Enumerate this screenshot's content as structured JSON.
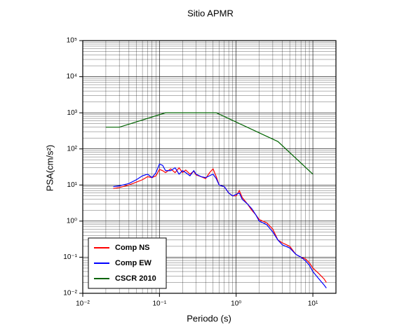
{
  "chart_data": {
    "type": "line",
    "title": "Sitio APMR",
    "x_label": "Periodo (s)",
    "y_label": "PSA(cm/s²)",
    "log_x": true,
    "log_y": true,
    "grid": true,
    "minor_grid": true,
    "legend": "lower left",
    "xlim": [
      0.01,
      20
    ],
    "ylim": [
      0.01,
      100000
    ],
    "xticks": [
      {
        "value": 0.01,
        "label": "10⁻²"
      },
      {
        "value": 0.1,
        "label": "10⁻¹"
      },
      {
        "value": 1,
        "label": "10⁰"
      },
      {
        "value": 10,
        "label": "10¹"
      }
    ],
    "yticks": [
      {
        "value": 0.01,
        "label": "10⁻²"
      },
      {
        "value": 0.1,
        "label": "10⁻¹"
      },
      {
        "value": 1,
        "label": "10⁰"
      },
      {
        "value": 10,
        "label": "10¹"
      },
      {
        "value": 100,
        "label": "10²"
      },
      {
        "value": 1000,
        "label": "10³"
      },
      {
        "value": 10000,
        "label": "10⁴"
      },
      {
        "value": 100000,
        "label": "10⁵"
      }
    ],
    "series": [
      {
        "name": "Comp NS",
        "color": "#ff0000",
        "x": [
          0.025,
          0.03,
          0.04,
          0.05,
          0.06,
          0.07,
          0.08,
          0.09,
          0.1,
          0.11,
          0.12,
          0.14,
          0.16,
          0.18,
          0.2,
          0.22,
          0.25,
          0.28,
          0.3,
          0.35,
          0.4,
          0.45,
          0.5,
          0.55,
          0.6,
          0.7,
          0.8,
          0.9,
          1.0,
          1.1,
          1.2,
          1.4,
          1.6,
          1.8,
          2,
          2.5,
          3,
          3.5,
          4,
          5,
          6,
          7,
          8,
          9,
          10,
          12,
          14,
          15
        ],
        "values": [
          8,
          8.5,
          10,
          12,
          14,
          17,
          16,
          18,
          27,
          25,
          22,
          28,
          22,
          30,
          22,
          26,
          20,
          24,
          19,
          17,
          15,
          22,
          28,
          17,
          10,
          9,
          6,
          5,
          5,
          7,
          4.5,
          3,
          2,
          1.5,
          1.1,
          0.9,
          0.6,
          0.3,
          0.25,
          0.2,
          0.12,
          0.1,
          0.09,
          0.07,
          0.05,
          0.035,
          0.025,
          0.02
        ]
      },
      {
        "name": "Comp EW",
        "color": "#0000ff",
        "x": [
          0.025,
          0.03,
          0.04,
          0.05,
          0.06,
          0.07,
          0.08,
          0.09,
          0.1,
          0.11,
          0.12,
          0.14,
          0.16,
          0.18,
          0.2,
          0.22,
          0.25,
          0.28,
          0.3,
          0.35,
          0.4,
          0.45,
          0.5,
          0.55,
          0.6,
          0.7,
          0.8,
          0.9,
          1.0,
          1.1,
          1.2,
          1.4,
          1.6,
          1.8,
          2,
          2.5,
          3,
          3.5,
          4,
          5,
          6,
          7,
          8,
          9,
          10,
          12,
          14,
          15
        ],
        "values": [
          9,
          9.5,
          11,
          14,
          18,
          20,
          16,
          22,
          38,
          35,
          25,
          25,
          30,
          20,
          25,
          22,
          18,
          25,
          20,
          17,
          16,
          18,
          20,
          15,
          10,
          9,
          6,
          5,
          5.5,
          6,
          4,
          3,
          2.2,
          1.5,
          1,
          0.8,
          0.5,
          0.3,
          0.22,
          0.18,
          0.12,
          0.1,
          0.08,
          0.06,
          0.04,
          0.025,
          0.017,
          0.014
        ]
      },
      {
        "name": "CSCR 2010",
        "color": "#006400",
        "x": [
          0.02,
          0.03,
          0.12,
          0.55,
          3.5,
          10
        ],
        "values": [
          400,
          400,
          1000,
          1000,
          160,
          20
        ]
      }
    ]
  }
}
